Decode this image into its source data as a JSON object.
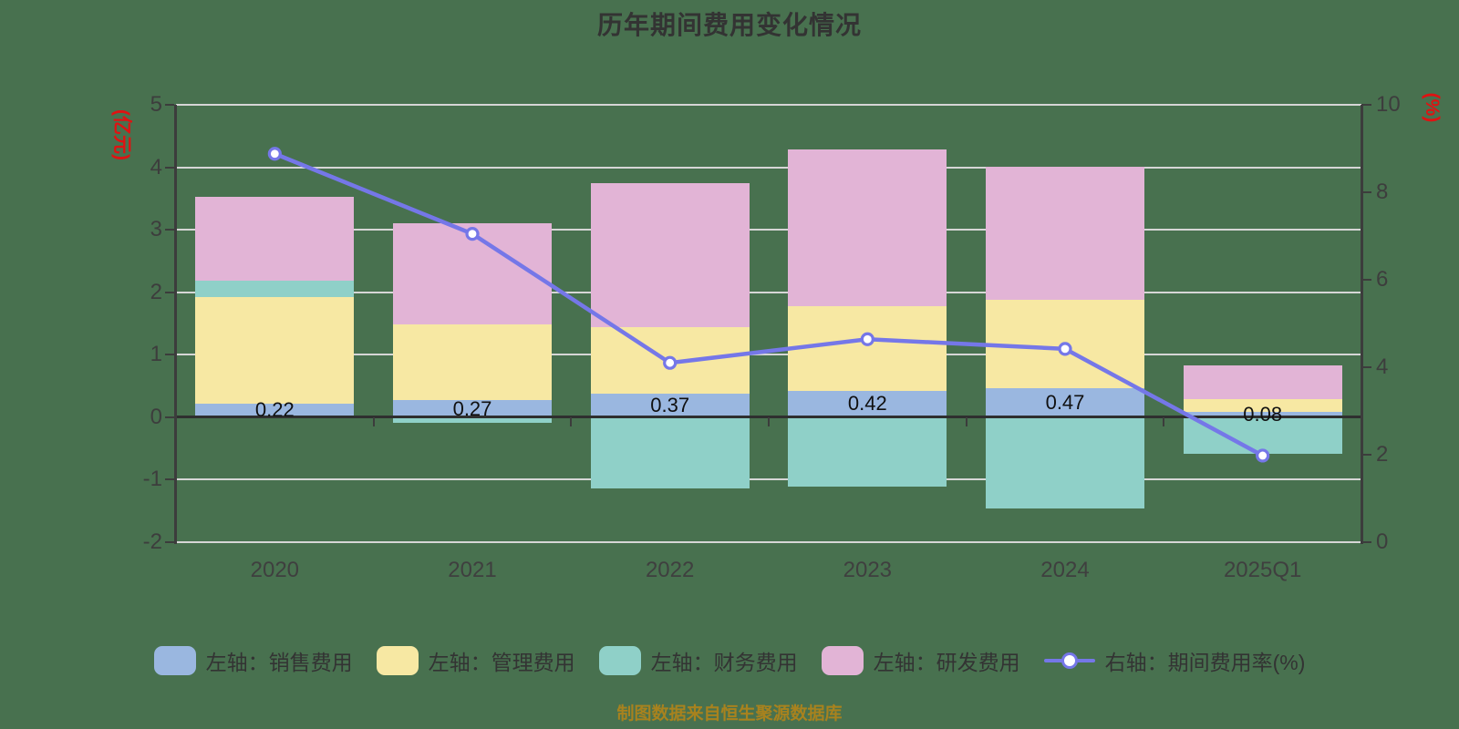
{
  "title": "历年期间费用变化情况",
  "caption": "制图数据来自恒生聚源数据库",
  "colors": {
    "background": "#48714f",
    "sales": "#9ab7e0",
    "management": "#f7e8a3",
    "finance": "#8fd0c8",
    "rd": "#e2b4d6",
    "rate_line": "#7577e8",
    "grid": "#d6d6d6",
    "axis": "#3c3c3c",
    "axis_unit_text": "#e01212",
    "title_text": "#333333",
    "caption_text": "#a8821e",
    "bar_label_text": "#101010"
  },
  "chart_data": {
    "type": "bar",
    "subtype": "stacked-bar-with-line",
    "categories": [
      "2020",
      "2021",
      "2022",
      "2023",
      "2024",
      "2025Q1"
    ],
    "series": [
      {
        "name": "左轴：销售费用",
        "type": "bar",
        "axis": "left",
        "color_key": "sales",
        "values": [
          0.22,
          0.27,
          0.37,
          0.42,
          0.47,
          0.08
        ]
      },
      {
        "name": "左轴：管理费用",
        "type": "bar",
        "axis": "left",
        "color_key": "management",
        "values": [
          1.7,
          1.22,
          1.07,
          1.36,
          1.41,
          0.21
        ]
      },
      {
        "name": "左轴：财务费用",
        "type": "bar",
        "axis": "left",
        "color_key": "finance",
        "values": [
          0.27,
          -0.09,
          -1.14,
          -1.11,
          -1.46,
          -0.58
        ]
      },
      {
        "name": "左轴：研发费用",
        "type": "bar",
        "axis": "left",
        "color_key": "rd",
        "values": [
          1.34,
          1.62,
          2.31,
          2.51,
          2.13,
          0.54
        ]
      },
      {
        "name": "右轴：期间费用率(%)",
        "type": "line",
        "axis": "right",
        "color_key": "rate_line",
        "values": [
          8.88,
          7.05,
          4.1,
          4.64,
          4.42,
          1.98
        ]
      }
    ],
    "bar_value_labels": [
      "0.22",
      "0.27",
      "0.37",
      "0.42",
      "0.47",
      "0.08"
    ],
    "left_axis": {
      "title": "(亿元)",
      "min": -2,
      "max": 5,
      "ticks": [
        5,
        4,
        3,
        2,
        1,
        0,
        -1,
        -2
      ]
    },
    "right_axis": {
      "title": "(%)",
      "min": 0,
      "max": 10,
      "ticks": [
        10,
        8,
        6,
        4,
        2,
        0
      ]
    },
    "grid": true,
    "legend_position": "bottom"
  },
  "legend": {
    "items": [
      {
        "label": "左轴：销售费用",
        "marker": "bar",
        "color_key": "sales"
      },
      {
        "label": "左轴：管理费用",
        "marker": "bar",
        "color_key": "management"
      },
      {
        "label": "左轴：财务费用",
        "marker": "bar",
        "color_key": "finance"
      },
      {
        "label": "左轴：研发费用",
        "marker": "bar",
        "color_key": "rd"
      },
      {
        "label": "右轴：期间费用率(%)",
        "marker": "line",
        "color_key": "rate_line"
      }
    ]
  }
}
